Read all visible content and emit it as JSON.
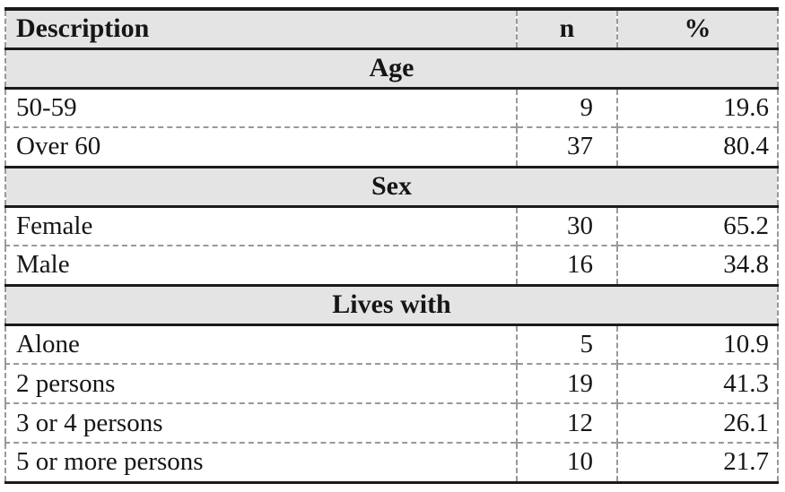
{
  "table": {
    "columns": {
      "description": "Description",
      "n": "n",
      "percent": "%"
    },
    "sections": [
      {
        "title": "Age",
        "rows": [
          {
            "label": "50-59",
            "n": "9",
            "pct": "19.6"
          },
          {
            "label": "Over 60",
            "n": "37",
            "pct": "80.4"
          }
        ]
      },
      {
        "title": "Sex",
        "rows": [
          {
            "label": "Female",
            "n": "30",
            "pct": "65.2"
          },
          {
            "label": "Male",
            "n": "16",
            "pct": "34.8"
          }
        ]
      },
      {
        "title": "Lives with",
        "rows": [
          {
            "label": "Alone",
            "n": "5",
            "pct": "10.9"
          },
          {
            "label": "2 persons",
            "n": "19",
            "pct": "41.3"
          },
          {
            "label": "3 or 4 persons",
            "n": "12",
            "pct": "26.1"
          },
          {
            "label": "5 or more persons",
            "n": "10",
            "pct": "21.7"
          }
        ]
      }
    ],
    "colors": {
      "band_background": "#e4e4e4",
      "solid_border": "#1b1b1b",
      "dashed_border": "#999999"
    }
  }
}
